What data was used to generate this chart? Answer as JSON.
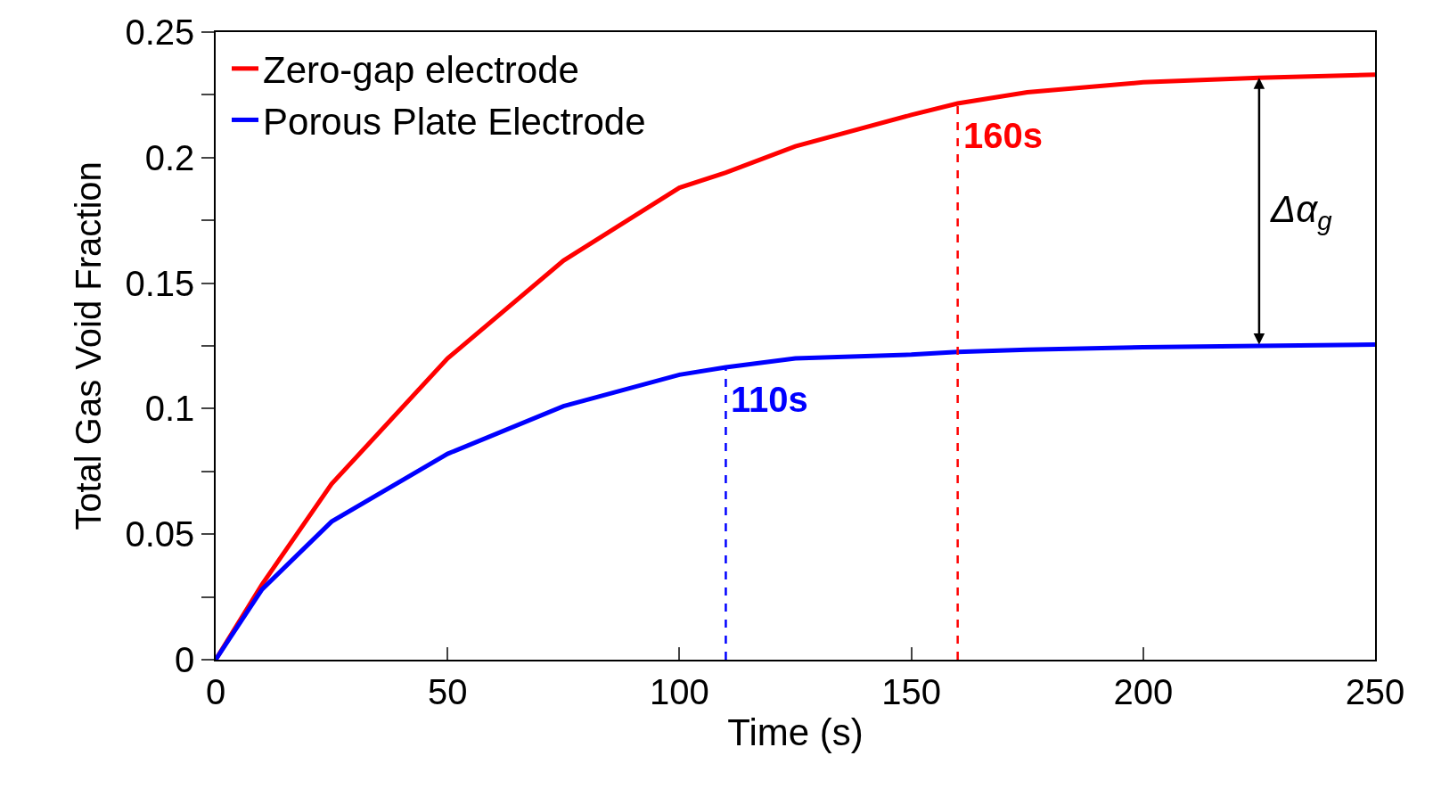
{
  "chart_data": {
    "type": "line",
    "xlabel": "Time (s)",
    "ylabel": "Total Gas Void Fraction",
    "x": [
      0,
      10,
      25,
      50,
      75,
      100,
      110,
      125,
      150,
      160,
      175,
      200,
      225,
      250
    ],
    "series": [
      {
        "name": "Zero-gap electrode",
        "color": "#ff0000",
        "values": [
          0,
          0.03,
          0.07,
          0.12,
          0.159,
          0.188,
          0.194,
          0.2045,
          0.217,
          0.2216,
          0.226,
          0.23,
          0.2318,
          0.233
        ]
      },
      {
        "name": "Porous Plate Electrode",
        "color": "#0000ff",
        "values": [
          0,
          0.028,
          0.055,
          0.082,
          0.101,
          0.1135,
          0.1165,
          0.12,
          0.1215,
          0.1226,
          0.1235,
          0.1245,
          0.125,
          0.1255
        ]
      }
    ],
    "xlim": [
      0,
      250
    ],
    "xticks": [
      0,
      50,
      100,
      150,
      200,
      250
    ],
    "ylim": [
      0,
      0.25
    ],
    "yticks": [
      0,
      {
        "value": 0.025,
        "label": null
      },
      0.05,
      {
        "value": 0.075,
        "label": null
      },
      0.1,
      {
        "value": 0.125,
        "label": null
      },
      0.15,
      {
        "value": 0.175,
        "label": null
      },
      0.2,
      {
        "value": 0.225,
        "label": null
      },
      0.25
    ],
    "ref_lines": [
      {
        "axis": "x",
        "value": 110,
        "label": "110s",
        "color": "#0000ff",
        "line_style": "dashed"
      },
      {
        "axis": "x",
        "value": 160,
        "label": "160s",
        "color": "#ff0000",
        "line_style": "dashed"
      }
    ],
    "annotations": [
      "Δα$_{g}$"
    ],
    "legend": "top left",
    "marker": "none",
    "line_style": "solid"
  }
}
